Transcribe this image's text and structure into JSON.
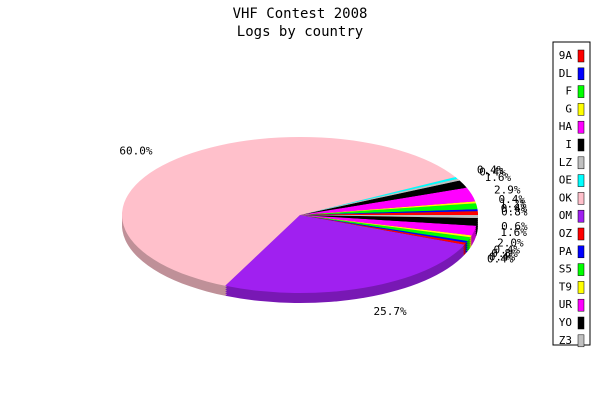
{
  "chart_data": {
    "type": "pie",
    "title": "VHF Contest 2008",
    "subtitle": "Logs by country",
    "categories": [
      "9A",
      "DL",
      "F",
      "G",
      "HA",
      "I",
      "LZ",
      "OE",
      "OK",
      "OM",
      "OZ",
      "PA",
      "S5",
      "T9",
      "UR",
      "YO",
      "Z3"
    ],
    "values": [
      0.8,
      0.4,
      1.2,
      0.4,
      2.9,
      1.6,
      0.4,
      0.4,
      60.0,
      25.7,
      0.4,
      0.4,
      0.8,
      0.4,
      2.0,
      1.6,
      0.6
    ],
    "value_labels": [
      "0.8%",
      "0.4%",
      "1.2%",
      "0.4%",
      "2.9%",
      "1.6%",
      "0.4%",
      "0.4%",
      "60.0%",
      "25.7%",
      "0.4%",
      "0.4%",
      "0.8%",
      "0.4%",
      "2.0%",
      "1.6%",
      "0.6%"
    ],
    "colors": [
      "#ff0000",
      "#0000ff",
      "#00ff00",
      "#ffff00",
      "#ff00ff",
      "#000000",
      "#c0c0c0",
      "#00ffff",
      "#ffc0cb",
      "#a020f0",
      "#ff0000",
      "#0000ff",
      "#00ff00",
      "#ffff00",
      "#ff00ff",
      "#000000",
      "#c0c0c0"
    ],
    "legend": "right"
  }
}
